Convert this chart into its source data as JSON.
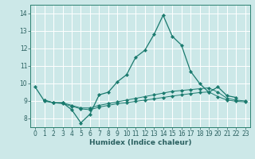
{
  "xlabel": "Humidex (Indice chaleur)",
  "xlim": [
    -0.5,
    23.5
  ],
  "ylim": [
    7.5,
    14.5
  ],
  "yticks": [
    8,
    9,
    10,
    11,
    12,
    13,
    14
  ],
  "xticks": [
    0,
    1,
    2,
    3,
    4,
    5,
    6,
    7,
    8,
    9,
    10,
    11,
    12,
    13,
    14,
    15,
    16,
    17,
    18,
    19,
    20,
    21,
    22,
    23
  ],
  "background_color": "#cce8e8",
  "grid_color": "#ffffff",
  "line_color": "#1a7a6e",
  "series_main_x": [
    0,
    1,
    2,
    3,
    4,
    5,
    6,
    7,
    8,
    9,
    10,
    11,
    12,
    13,
    14,
    15,
    16,
    17,
    18,
    19,
    20,
    21,
    22
  ],
  "series_main_y": [
    9.8,
    9.0,
    8.9,
    8.9,
    8.5,
    7.75,
    8.25,
    9.35,
    9.5,
    10.1,
    10.5,
    11.5,
    11.9,
    12.8,
    13.9,
    12.7,
    12.2,
    10.7,
    10.0,
    9.5,
    9.8,
    9.3,
    9.2
  ],
  "series_flat1_x": [
    1,
    2,
    3,
    4,
    5,
    6,
    7,
    8,
    9,
    10,
    11,
    12,
    13,
    14,
    15,
    16,
    17,
    18,
    19,
    20,
    21,
    22,
    23
  ],
  "series_flat1_y": [
    9.05,
    8.9,
    8.9,
    8.75,
    8.6,
    8.6,
    8.75,
    8.85,
    8.95,
    9.05,
    9.15,
    9.25,
    9.35,
    9.45,
    9.55,
    9.6,
    9.65,
    9.7,
    9.75,
    9.5,
    9.15,
    9.05,
    9.0
  ],
  "series_flat2_x": [
    1,
    2,
    3,
    4,
    5,
    6,
    7,
    8,
    9,
    10,
    11,
    12,
    13,
    14,
    15,
    16,
    17,
    18,
    19,
    20,
    21,
    22,
    23
  ],
  "series_flat2_y": [
    9.05,
    8.9,
    8.85,
    8.7,
    8.55,
    8.5,
    8.65,
    8.75,
    8.85,
    8.9,
    8.98,
    9.05,
    9.12,
    9.2,
    9.28,
    9.35,
    9.42,
    9.48,
    9.52,
    9.25,
    9.05,
    8.98,
    8.95
  ],
  "tick_fontsize": 5.5,
  "xlabel_fontsize": 6.5,
  "tick_color": "#2a6060",
  "spine_color": "#2a8070"
}
